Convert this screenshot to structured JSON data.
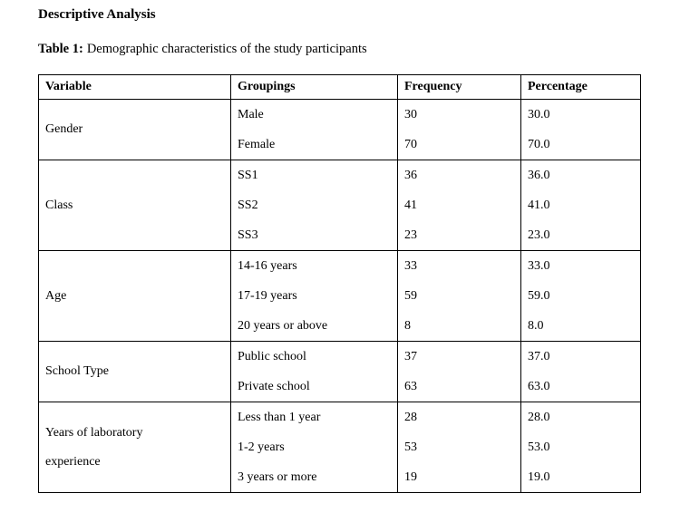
{
  "page": {
    "heading": "Descriptive Analysis"
  },
  "caption": {
    "label": "Table 1:",
    "text": "Demographic characteristics of the study participants"
  },
  "table": {
    "columns": [
      "Variable",
      "Groupings",
      "Frequency",
      "Percentage"
    ],
    "groups": [
      {
        "variable": "Gender",
        "rows": [
          {
            "grouping": "Male",
            "frequency": "30",
            "percentage": "30.0"
          },
          {
            "grouping": "Female",
            "frequency": "70",
            "percentage": "70.0"
          }
        ]
      },
      {
        "variable": "Class",
        "rows": [
          {
            "grouping": "SS1",
            "frequency": "36",
            "percentage": "36.0"
          },
          {
            "grouping": "SS2",
            "frequency": "41",
            "percentage": "41.0"
          },
          {
            "grouping": "SS3",
            "frequency": "23",
            "percentage": "23.0"
          }
        ]
      },
      {
        "variable": "Age",
        "rows": [
          {
            "grouping": "14-16 years",
            "frequency": "33",
            "percentage": "33.0"
          },
          {
            "grouping": "17-19 years",
            "frequency": "59",
            "percentage": "59.0"
          },
          {
            "grouping": "20 years or above",
            "frequency": "8",
            "percentage": "8.0"
          }
        ]
      },
      {
        "variable": "School Type",
        "rows": [
          {
            "grouping": "Public school",
            "frequency": "37",
            "percentage": "37.0"
          },
          {
            "grouping": "Private school",
            "frequency": "63",
            "percentage": "63.0"
          }
        ]
      },
      {
        "variable": "Years of laboratory experience",
        "rows": [
          {
            "grouping": "Less than 1 year",
            "frequency": "28",
            "percentage": "28.0"
          },
          {
            "grouping": "1-2 years",
            "frequency": "53",
            "percentage": "53.0"
          },
          {
            "grouping": "3 years or more",
            "frequency": "19",
            "percentage": "19.0"
          }
        ]
      }
    ]
  },
  "colors": {
    "text": "#000000",
    "border": "#000000",
    "background": "#ffffff"
  }
}
